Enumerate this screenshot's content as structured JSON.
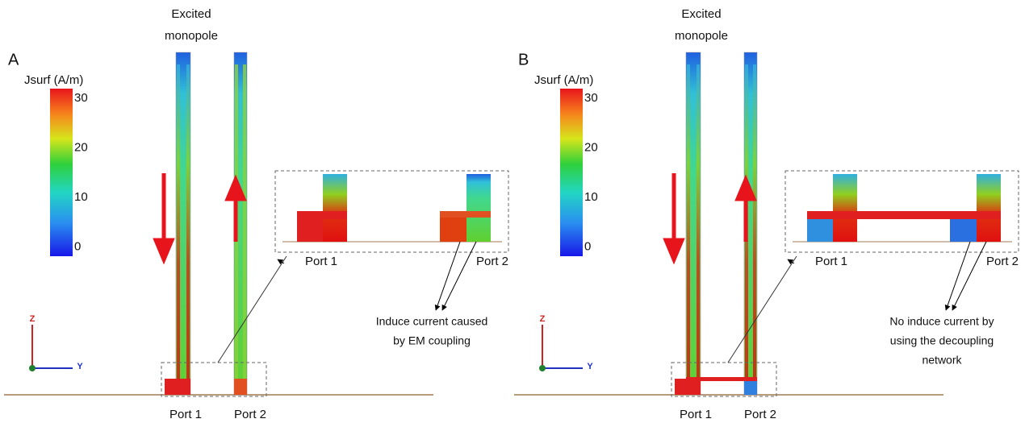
{
  "panels": [
    {
      "letter": "A",
      "excited_label": [
        "Excited",
        "monopole"
      ],
      "colorbar": {
        "title": "Jsurf (A/m)",
        "ticks": [
          "30",
          "20",
          "10",
          "0"
        ]
      },
      "port_labels": [
        "Port 1",
        "Port 2"
      ],
      "inset_port_labels": [
        "Port 1",
        "Port 2"
      ],
      "annotation": [
        "Induce current caused",
        "by EM coupling"
      ],
      "axes": [
        "Z",
        "Y"
      ]
    },
    {
      "letter": "B",
      "excited_label": [
        "Excited",
        "monopole"
      ],
      "colorbar": {
        "title": "Jsurf (A/m)",
        "ticks": [
          "30",
          "20",
          "10",
          "0"
        ]
      },
      "port_labels": [
        "Port 1",
        "Port 2"
      ],
      "inset_port_labels": [
        "Port 1",
        "Port 2"
      ],
      "annotation": [
        "No induce current by",
        "using the decoupling",
        "network"
      ],
      "axes": [
        "Z",
        "Y"
      ]
    }
  ]
}
